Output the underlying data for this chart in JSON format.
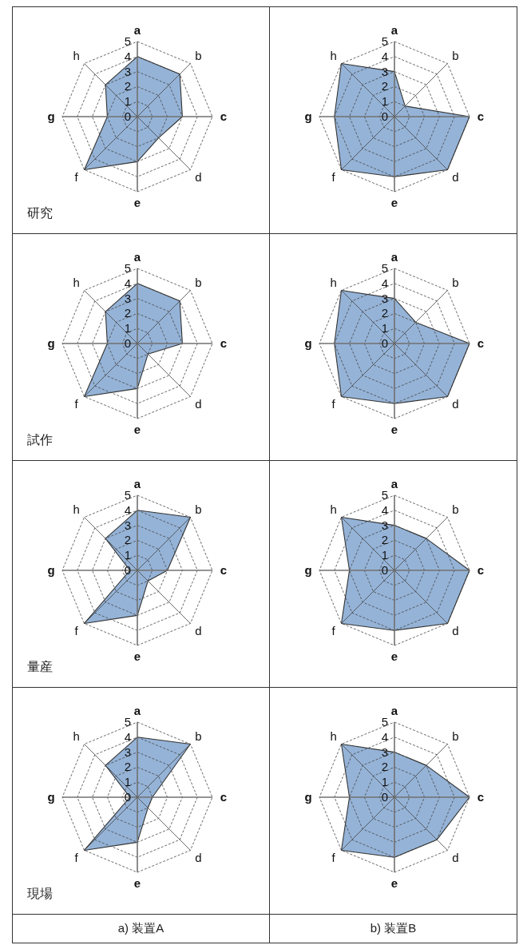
{
  "chart_data": [
    {
      "type": "radar",
      "categories": [
        "a",
        "b",
        "c",
        "d",
        "e",
        "f",
        "g",
        "h"
      ],
      "ylim": [
        0,
        5
      ],
      "yticks": [
        0,
        1,
        2,
        3,
        4,
        5
      ],
      "grid": true,
      "series": [
        {
          "color": "#95b3d7",
          "values": [
            4,
            4,
            3,
            2,
            3,
            5,
            2,
            3
          ]
        }
      ],
      "annotations": [
        "研究"
      ]
    },
    {
      "type": "radar",
      "categories": [
        "a",
        "b",
        "c",
        "d",
        "e",
        "f",
        "g",
        "h"
      ],
      "ylim": [
        0,
        5
      ],
      "yticks": [
        0,
        1,
        2,
        3,
        4,
        5
      ],
      "grid": true,
      "series": [
        {
          "color": "#95b3d7",
          "values": [
            3,
            1,
            5,
            5,
            4,
            5,
            4,
            5
          ]
        }
      ]
    },
    {
      "type": "radar",
      "categories": [
        "a",
        "b",
        "c",
        "d",
        "e",
        "f",
        "g",
        "h"
      ],
      "ylim": [
        0,
        5
      ],
      "yticks": [
        0,
        1,
        2,
        3,
        4,
        5
      ],
      "grid": true,
      "series": [
        {
          "color": "#95b3d7",
          "values": [
            4,
            4,
            3,
            1,
            3,
            5,
            2,
            3
          ]
        }
      ],
      "annotations": [
        "試作"
      ]
    },
    {
      "type": "radar",
      "categories": [
        "a",
        "b",
        "c",
        "d",
        "e",
        "f",
        "g",
        "h"
      ],
      "ylim": [
        0,
        5
      ],
      "yticks": [
        0,
        1,
        2,
        3,
        4,
        5
      ],
      "grid": true,
      "series": [
        {
          "color": "#95b3d7",
          "values": [
            3,
            2,
            5,
            5,
            4,
            5,
            4,
            5
          ]
        }
      ]
    },
    {
      "type": "radar",
      "categories": [
        "a",
        "b",
        "c",
        "d",
        "e",
        "f",
        "g",
        "h"
      ],
      "ylim": [
        0,
        5
      ],
      "yticks": [
        0,
        1,
        2,
        3,
        4,
        5
      ],
      "grid": true,
      "series": [
        {
          "color": "#95b3d7",
          "values": [
            4,
            5,
            2,
            1,
            3,
            5,
            0.5,
            3
          ]
        }
      ],
      "annotations": [
        "量産"
      ]
    },
    {
      "type": "radar",
      "categories": [
        "a",
        "b",
        "c",
        "d",
        "e",
        "f",
        "g",
        "h"
      ],
      "ylim": [
        0,
        5
      ],
      "yticks": [
        0,
        1,
        2,
        3,
        4,
        5
      ],
      "grid": true,
      "series": [
        {
          "color": "#95b3d7",
          "values": [
            3,
            3,
            5,
            5,
            4,
            5,
            3,
            5
          ]
        }
      ]
    },
    {
      "type": "radar",
      "categories": [
        "a",
        "b",
        "c",
        "d",
        "e",
        "f",
        "g",
        "h"
      ],
      "ylim": [
        0,
        5
      ],
      "yticks": [
        0,
        1,
        2,
        3,
        4,
        5
      ],
      "grid": true,
      "series": [
        {
          "color": "#95b3d7",
          "values": [
            4,
            5,
            1,
            1,
            3,
            5,
            0.5,
            3
          ]
        }
      ],
      "annotations": [
        "現場"
      ]
    },
    {
      "type": "radar",
      "categories": [
        "a",
        "b",
        "c",
        "d",
        "e",
        "f",
        "g",
        "h"
      ],
      "ylim": [
        0,
        5
      ],
      "yticks": [
        0,
        1,
        2,
        3,
        4,
        5
      ],
      "grid": true,
      "series": [
        {
          "color": "#95b3d7",
          "values": [
            3,
            3,
            5,
            4,
            4,
            5,
            3,
            5
          ]
        }
      ]
    },
    {
      "type": "other",
      "title": "a) 装置A"
    },
    {
      "type": "other",
      "title": "b) 装置B"
    }
  ]
}
